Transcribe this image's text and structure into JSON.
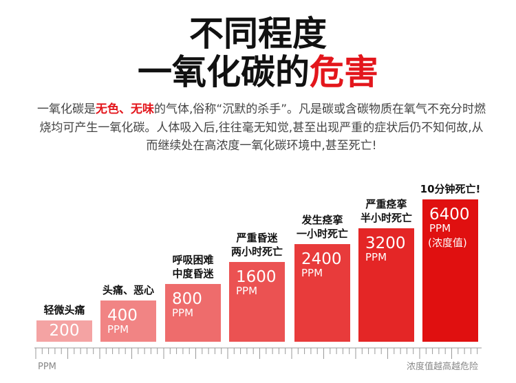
{
  "header": {
    "line1": "不同程度",
    "line2_black": "一氧化碳的",
    "line2_red": "危害"
  },
  "intro": {
    "before": "一氧化碳是",
    "highlight": "无色、无味",
    "after": "的气体,俗称“沉默的杀手”。凡是碳或含碳物质在氧气不充分时燃烧均可产生一氧化碳。人体吸入后,往往毫无知觉,甚至出现严重的症状后仍不知何故,从而继续处在高浓度一氧化碳环境中,甚至死亡!"
  },
  "steps": [
    {
      "label": [
        "轻微头痛"
      ],
      "value": "200"
    },
    {
      "label": [
        "头痛、恶心"
      ],
      "value": "400",
      "unit": "PPM"
    },
    {
      "label": [
        "呼吸困难",
        "中度昏迷"
      ],
      "value": "800",
      "unit": "PPM"
    },
    {
      "label": [
        "严重昏迷",
        "两小时死亡"
      ],
      "value": "1600",
      "unit": "PPM"
    },
    {
      "label": [
        "发生痉挛",
        "一小时死亡"
      ],
      "value": "2400",
      "unit": "PPM"
    },
    {
      "label": [
        "严重痉挛",
        "半小时死亡"
      ],
      "value": "3200",
      "unit": "PPM"
    },
    {
      "label": [
        "10分钟死亡!"
      ],
      "value": "6400",
      "unit": "PPM",
      "note": "(浓度值)"
    }
  ],
  "axis": {
    "left": "PPM",
    "right": "浓度值越高越危险"
  }
}
